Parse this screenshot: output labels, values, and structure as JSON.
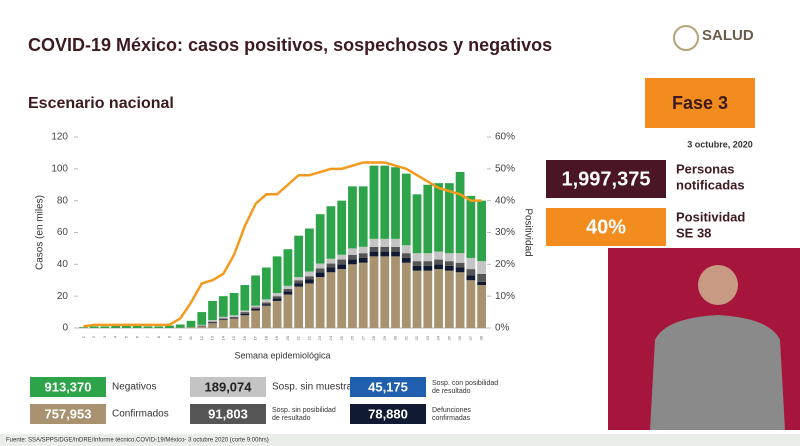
{
  "header": {
    "title": "COVID-19 México: casos positivos, sospechosos y negativos",
    "subtitle": "Escenario nacional",
    "logo": "SALUD"
  },
  "phase": {
    "label": "Fase 3",
    "date": "3 octubre, 2020"
  },
  "stats": [
    {
      "value": "1,997,375",
      "label": [
        "Personas",
        "notificadas"
      ],
      "color": "#4a1626"
    },
    {
      "value": "40%",
      "label": [
        "Positividad",
        "SE 38"
      ],
      "color": "#f28c1e"
    }
  ],
  "footer": "Fuente: SSA/SPPS/DGE/InDRE/Informe técnico.COVID-19/México- 3 octubre 2020 (corte 9:00hrs)",
  "chart_data": {
    "type": "bar",
    "stacked": true,
    "x_label": "Semana epidemiológica",
    "y_label": "Casos (en miles)",
    "y2_label": "Positividad",
    "categories": [
      "1",
      "2",
      "3",
      "4",
      "5",
      "6",
      "7",
      "8",
      "9",
      "10",
      "11",
      "12",
      "13",
      "14",
      "15",
      "16",
      "17",
      "18",
      "19",
      "20",
      "21",
      "22",
      "23",
      "24",
      "25",
      "26",
      "27",
      "28",
      "29",
      "30",
      "31",
      "32",
      "33",
      "34",
      "35",
      "36",
      "37",
      "38"
    ],
    "ylim": [
      0,
      120
    ],
    "yticks": [
      0,
      20,
      40,
      60,
      80,
      100,
      120
    ],
    "y2lim": [
      0,
      60
    ],
    "y2ticks": [
      {
        "value": 0,
        "label": "0%"
      },
      {
        "value": 10,
        "label": "10%"
      },
      {
        "value": 20,
        "label": "20%"
      },
      {
        "value": 30,
        "label": "30%"
      },
      {
        "value": 40,
        "label": "40%"
      },
      {
        "value": 50,
        "label": "50%"
      },
      {
        "value": 60,
        "label": "60%"
      }
    ],
    "series": [
      {
        "name": [
          "Confirmados"
        ],
        "total": "757,953",
        "color": "#a8926f",
        "values": [
          0,
          0,
          0,
          0,
          0,
          0,
          0,
          0,
          0,
          0.2,
          0.5,
          1,
          3,
          5,
          6,
          8,
          11,
          14,
          17,
          21,
          26,
          28,
          32,
          35,
          37,
          40,
          41,
          45,
          45,
          45,
          41,
          36,
          36,
          37,
          36,
          35,
          30,
          27
        ]
      },
      {
        "name": [
          "Defunciones",
          "confirmadas"
        ],
        "total": "78,880",
        "color": "#111a33",
        "values": [
          0,
          0,
          0,
          0,
          0,
          0,
          0,
          0,
          0,
          0,
          0,
          0.2,
          0.5,
          0.5,
          0.5,
          1,
          1,
          1,
          1.5,
          2,
          2,
          2.5,
          3,
          3,
          3,
          3,
          3,
          3,
          3,
          3,
          3,
          3,
          3,
          3,
          3,
          3,
          3,
          2
        ]
      },
      {
        "name": [
          "Sosp. sin posibilidad",
          "de resultado"
        ],
        "total": "91,803",
        "color": "#555555",
        "values": [
          0,
          0,
          0,
          0,
          0,
          0,
          0,
          0,
          0,
          0,
          0,
          0.3,
          0.5,
          0.5,
          0.5,
          1,
          1,
          1,
          1.5,
          1.5,
          2,
          2,
          2.5,
          2.5,
          3,
          3,
          3,
          3,
          3,
          3,
          3,
          3,
          3,
          3,
          3,
          3,
          4,
          5
        ]
      },
      {
        "name": [
          "Sosp. sin muestra"
        ],
        "total": "189,074",
        "color": "#c4c4c4",
        "values": [
          0,
          0,
          0,
          0,
          0,
          0,
          0,
          0,
          0,
          0,
          0,
          0.5,
          1,
          1,
          1,
          1,
          1,
          2,
          2,
          2,
          2,
          3,
          3,
          3,
          3,
          4,
          4,
          5,
          5,
          5,
          5,
          5,
          5,
          5,
          5,
          6,
          7,
          8
        ]
      },
      {
        "name": [
          "Negativos"
        ],
        "total": "913,370",
        "color": "#2ea44a",
        "values": [
          0.5,
          1,
          1,
          1.5,
          1.5,
          1.5,
          1,
          1,
          1.5,
          2,
          4,
          8,
          12,
          13,
          14,
          16,
          19,
          20,
          23,
          23,
          26,
          27,
          31,
          33,
          34,
          39,
          38,
          46,
          46,
          45,
          45,
          37,
          43,
          43,
          44,
          51,
          39,
          38
        ]
      },
      {
        "type": "line",
        "axis": "y2",
        "color": "#f39a1e",
        "values": [
          0.5,
          1,
          1,
          1,
          1,
          1,
          1,
          1,
          1,
          3,
          8,
          14,
          15,
          17,
          23,
          32,
          39,
          42,
          42,
          45,
          48,
          48,
          49,
          50,
          50,
          51,
          52,
          52,
          52,
          51,
          50,
          48,
          46,
          44,
          43,
          42,
          40,
          40
        ]
      }
    ],
    "extra_legend": [
      {
        "name": [
          "Sosp. con posibilidad",
          "de resultado"
        ],
        "total": "45,175",
        "color": "#1f5fae"
      }
    ]
  }
}
